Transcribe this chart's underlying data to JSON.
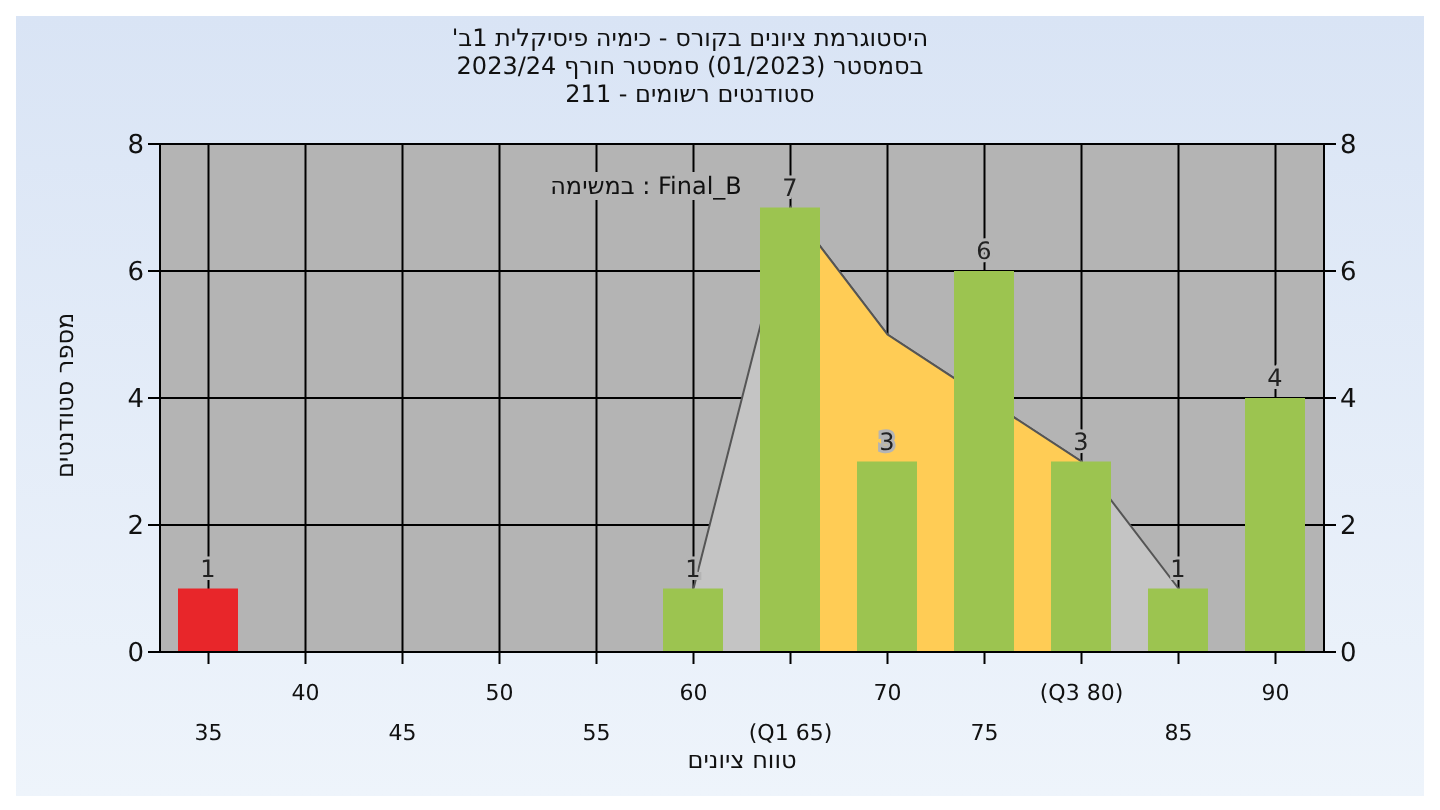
{
  "chart_data": {
    "type": "bar",
    "title": "היסטוגרמת ציונים בקורס - כימיה פיסיקלית 1ב'",
    "subtitle": "בסמסטר (01/2023) סמסטר חורף 2023/24\nסטודנטים רשומים - 211",
    "xlabel": "טווח ציונים",
    "ylabel": "מספר סטודנטים",
    "annotations": [
      "במשימה : Final_B"
    ],
    "categories": [
      "35",
      "40",
      "45",
      "50",
      "55",
      "60",
      "(Q1 65)",
      "70",
      "75",
      "(Q3 80)",
      "85",
      "90"
    ],
    "series": [
      {
        "type": "area",
        "color": "#c4c4c4",
        "values": [
          null,
          null,
          null,
          null,
          null,
          1,
          7,
          5,
          null,
          3,
          1,
          null
        ]
      },
      {
        "type": "area",
        "color": "#ffcc55",
        "values": [
          null,
          null,
          null,
          null,
          null,
          null,
          7,
          5,
          null,
          3,
          null,
          null
        ]
      },
      {
        "values": [
          1,
          0,
          0,
          0,
          0,
          1,
          7,
          3,
          6,
          3,
          1,
          4
        ],
        "colors": [
          "#e8262a",
          "#9cc450",
          "#9cc450",
          "#9cc450",
          "#9cc450",
          "#9cc450",
          "#9cc450",
          "#9cc450",
          "#9cc450",
          "#9cc450",
          "#9cc450",
          "#9cc450"
        ],
        "value_labels": [
          "1",
          null,
          null,
          null,
          null,
          "1",
          "7",
          "3",
          "6",
          "3",
          "1",
          "4"
        ]
      }
    ],
    "ylim": [
      0,
      8
    ],
    "yticks": [
      0,
      2,
      4,
      6,
      8
    ],
    "y2lim": [
      0,
      8
    ],
    "y2ticks": [
      0,
      2,
      4,
      6,
      8
    ],
    "grid": true,
    "legend": false
  }
}
